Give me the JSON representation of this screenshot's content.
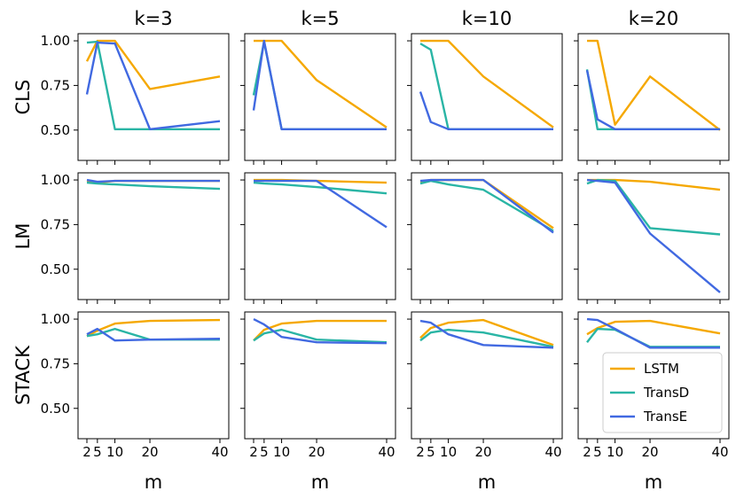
{
  "chart_data": {
    "type": "line",
    "layout": "grid",
    "columns": [
      "k=3",
      "k=5",
      "k=10",
      "k=20"
    ],
    "rows": [
      "CLS",
      "LM",
      "STACK"
    ],
    "xlabel": "m",
    "x": [
      2,
      5,
      10,
      20,
      40
    ],
    "xticks": [
      2,
      5,
      10,
      20,
      40
    ],
    "xtick_labels": [
      "2",
      "5",
      "10",
      "20",
      "40"
    ],
    "ylim": [
      0.33,
      1.04
    ],
    "yticks": [
      0.5,
      0.75,
      1.0
    ],
    "ytick_labels": [
      "0.50",
      "0.75",
      "1.00"
    ],
    "series_names": [
      "LSTM",
      "TransD",
      "TransE"
    ],
    "colors": {
      "LSTM": "#f5a800",
      "TransD": "#2ab5a5",
      "TransE": "#4169e1"
    },
    "legend": {
      "location": "lower-right",
      "panel": "STACK k=20",
      "entries": [
        "LSTM",
        "TransD",
        "TransE"
      ]
    },
    "panels": {
      "CLS": {
        "k=3": {
          "LSTM": [
            0.885,
            1.0,
            1.0,
            0.73,
            0.8
          ],
          "TransD": [
            0.99,
            0.995,
            0.505,
            0.505,
            0.505
          ],
          "TransE": [
            0.7,
            0.99,
            0.985,
            0.505,
            0.55
          ]
        },
        "k=5": {
          "LSTM": [
            1.0,
            1.0,
            1.0,
            0.78,
            0.515
          ],
          "TransD": [
            0.695,
            0.995,
            0.505,
            0.505,
            0.505
          ],
          "TransE": [
            0.61,
            1.0,
            0.505,
            0.505,
            0.505
          ]
        },
        "k=10": {
          "LSTM": [
            1.0,
            1.0,
            1.0,
            0.8,
            0.515
          ],
          "TransD": [
            0.985,
            0.95,
            0.505,
            0.505,
            0.505
          ],
          "TransE": [
            0.715,
            0.545,
            0.505,
            0.505,
            0.505
          ]
        },
        "k=20": {
          "LSTM": [
            1.0,
            1.0,
            0.53,
            0.8,
            0.5
          ],
          "TransD": [
            0.84,
            0.505,
            0.505,
            0.505,
            0.505
          ],
          "TransE": [
            0.835,
            0.56,
            0.505,
            0.505,
            0.505
          ]
        }
      },
      "LM": {
        "k=3": {
          "LSTM": [
            0.995,
            0.985,
            0.995,
            0.995,
            0.995
          ],
          "TransD": [
            0.985,
            0.98,
            0.975,
            0.965,
            0.95
          ],
          "TransE": [
            1.0,
            0.99,
            0.995,
            0.995,
            0.995
          ]
        },
        "k=5": {
          "LSTM": [
            1.0,
            1.0,
            1.0,
            0.995,
            0.985
          ],
          "TransD": [
            0.985,
            0.98,
            0.975,
            0.96,
            0.925
          ],
          "TransE": [
            0.995,
            0.995,
            0.995,
            0.995,
            0.735
          ]
        },
        "k=10": {
          "LSTM": [
            0.99,
            1.0,
            1.0,
            1.0,
            0.73
          ],
          "TransD": [
            0.98,
            0.995,
            0.975,
            0.945,
            0.715
          ],
          "TransE": [
            0.995,
            1.0,
            1.0,
            1.0,
            0.705
          ]
        },
        "k=20": {
          "LSTM": [
            1.0,
            1.0,
            1.0,
            0.99,
            0.945
          ],
          "TransD": [
            0.98,
            1.0,
            0.995,
            0.73,
            0.695
          ],
          "TransE": [
            1.0,
            0.995,
            0.985,
            0.7,
            0.37
          ]
        }
      },
      "STACK": {
        "k=3": {
          "LSTM": [
            0.905,
            0.935,
            0.975,
            0.99,
            0.995
          ],
          "TransD": [
            0.905,
            0.915,
            0.945,
            0.885,
            0.885
          ],
          "TransE": [
            0.915,
            0.945,
            0.88,
            0.885,
            0.89
          ]
        },
        "k=5": {
          "LSTM": [
            0.88,
            0.94,
            0.975,
            0.99,
            0.99
          ],
          "TransD": [
            0.88,
            0.92,
            0.94,
            0.885,
            0.87
          ],
          "TransE": [
            1.0,
            0.97,
            0.9,
            0.87,
            0.865
          ]
        },
        "k=10": {
          "LSTM": [
            0.895,
            0.95,
            0.98,
            0.995,
            0.855
          ],
          "TransD": [
            0.88,
            0.925,
            0.94,
            0.925,
            0.845
          ],
          "TransE": [
            0.99,
            0.98,
            0.915,
            0.855,
            0.84
          ]
        },
        "k=20": {
          "LSTM": [
            0.915,
            0.95,
            0.985,
            0.99,
            0.92
          ],
          "TransD": [
            0.87,
            0.945,
            0.94,
            0.845,
            0.845
          ],
          "TransE": [
            1.0,
            0.995,
            0.945,
            0.84,
            0.84
          ]
        }
      }
    }
  }
}
